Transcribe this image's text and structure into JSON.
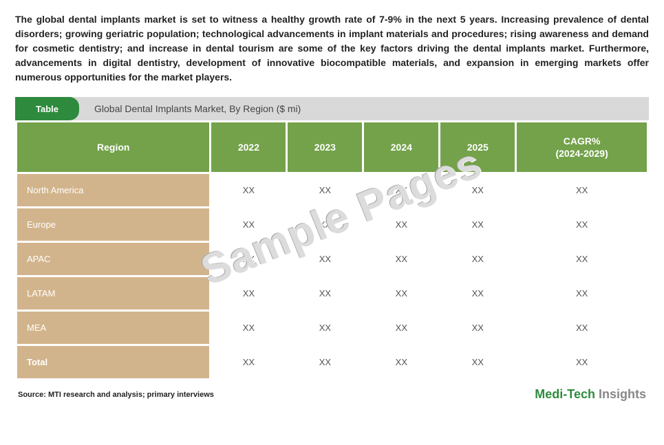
{
  "intro_text": "The global dental implants market is set to witness a healthy growth rate of 7-9% in the next 5 years. Increasing prevalence of dental disorders; growing geriatric population; technological advancements in implant materials and procedures; rising awareness and demand for cosmetic dentistry; and increase in dental tourism are some of the key factors driving the dental implants market. Furthermore, advancements in digital dentistry, development of innovative biocompatible materials, and expansion in emerging markets offer numerous opportunities for the market players.",
  "table": {
    "badge_label": "Table",
    "title": "Global Dental Implants Market, By Region ($ mi)",
    "columns": [
      "Region",
      "2022",
      "2023",
      "2024",
      "2025",
      "CAGR%\n(2024-2029)"
    ],
    "rows": [
      {
        "region": "North America",
        "vals": [
          "XX",
          "XX",
          "XX",
          "XX",
          "XX"
        ]
      },
      {
        "region": "Europe",
        "vals": [
          "XX",
          "XX",
          "XX",
          "XX",
          "XX"
        ]
      },
      {
        "region": "APAC",
        "vals": [
          "XX",
          "XX",
          "XX",
          "XX",
          "XX"
        ]
      },
      {
        "region": "LATAM",
        "vals": [
          "XX",
          "XX",
          "XX",
          "XX",
          "XX"
        ]
      },
      {
        "region": "MEA",
        "vals": [
          "XX",
          "XX",
          "XX",
          "XX",
          "XX"
        ]
      },
      {
        "region": "Total",
        "vals": [
          "XX",
          "XX",
          "XX",
          "XX",
          "XX"
        ],
        "total": true
      }
    ],
    "header_bg": "#73a24a",
    "header_text_color": "#ffffff",
    "region_cell_bg": "#d2b48c",
    "region_cell_text": "#ffffff",
    "badge_bg": "#2e8b3d",
    "bar_bg": "#d9d9d9",
    "cell_value_color": "#555555",
    "border_color": "#ffffff"
  },
  "watermark": "Sample Pages",
  "source_label": "Source: MTI research and analysis; primary interviews",
  "brand": {
    "part1": "Medi-",
    "part2": "Tech",
    "part3": " Insights"
  },
  "colors": {
    "brand_green": "#2e8b3d",
    "brand_gray": "#888888"
  }
}
